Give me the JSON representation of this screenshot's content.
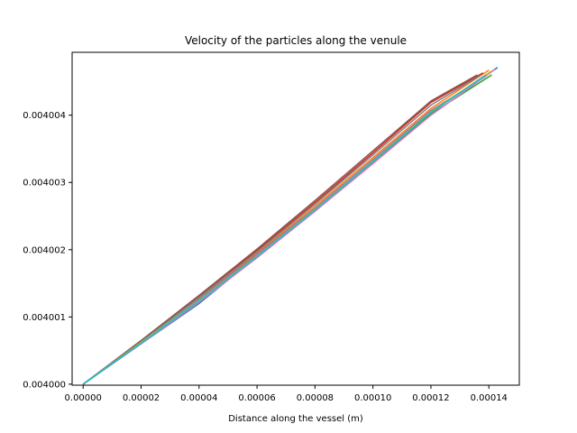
{
  "chart_data": {
    "type": "line",
    "title": "Velocity of the particles along the venule",
    "xlabel": "Distance along the vessel (m)",
    "ylabel": "",
    "xlim": [
      -3.8e-06,
      0.0001505
    ],
    "ylim": [
      0.003999985,
      0.004004935
    ],
    "x_ticks": [
      0,
      2e-05,
      4e-05,
      6e-05,
      8e-05,
      0.0001,
      0.00012,
      0.00014
    ],
    "x_tick_labels": [
      "0.00000",
      "0.00002",
      "0.00004",
      "0.00006",
      "0.00008",
      "0.00010",
      "0.00012",
      "0.00014"
    ],
    "y_ticks": [
      0.004,
      0.004001,
      0.004002,
      0.004003,
      0.004004
    ],
    "y_tick_labels": [
      "0.004000",
      "0.004001",
      "0.004002",
      "0.004003",
      "0.004004"
    ],
    "grid": false,
    "legend": "none",
    "series": [
      {
        "color": "#1f77b4",
        "x": [
          0,
          2e-05,
          4e-05,
          6e-05,
          8e-05,
          0.0001,
          0.00012,
          0.000143
        ],
        "y": [
          0.004,
          0.0040006,
          0.0040012,
          0.0040019,
          0.0040026,
          0.0040033,
          0.004004,
          0.00400471
        ]
      },
      {
        "color": "#ff7f0e",
        "x": [
          0,
          2e-05,
          4e-05,
          6e-05,
          8e-05,
          0.0001,
          0.00012,
          0.00014
        ],
        "y": [
          0.004,
          0.00400063,
          0.00400128,
          0.00400195,
          0.00400265,
          0.00400337,
          0.0040041,
          0.00400467
        ]
      },
      {
        "color": "#2ca02c",
        "x": [
          0,
          2e-05,
          4e-05,
          6e-05,
          8e-05,
          0.0001,
          0.00012,
          0.000141
        ],
        "y": [
          0.004,
          0.00400061,
          0.00400123,
          0.00400189,
          0.00400258,
          0.0040033,
          0.00400402,
          0.0040046
        ]
      },
      {
        "color": "#d62728",
        "x": [
          0,
          2e-05,
          4e-05,
          6e-05,
          8e-05,
          0.0001,
          0.00012,
          0.000138
        ],
        "y": [
          0.004,
          0.00400064,
          0.0040013,
          0.00400199,
          0.0040027,
          0.00400344,
          0.00400419,
          0.00400463
        ]
      },
      {
        "color": "#9467bd",
        "x": [
          0,
          2e-05,
          4e-05,
          6e-05,
          8e-05,
          0.0001,
          0.00012,
          0.000139
        ],
        "y": [
          0.004,
          0.00400062,
          0.00400126,
          0.00400193,
          0.00400262,
          0.00400334,
          0.00400407,
          0.00400458
        ]
      },
      {
        "color": "#8c564b",
        "x": [
          0,
          2e-05,
          4e-05,
          6e-05,
          8e-05,
          0.0001,
          0.00012,
          0.000136
        ],
        "y": [
          0.004,
          0.00400065,
          0.00400132,
          0.00400201,
          0.00400273,
          0.00400347,
          0.00400421,
          0.0040046
        ]
      },
      {
        "color": "#e377c2",
        "x": [
          0,
          2e-05,
          4e-05,
          6e-05,
          8e-05,
          0.0001,
          0.00012,
          0.000142
        ],
        "y": [
          0.004,
          0.0040006,
          0.00400122,
          0.00400188,
          0.00400257,
          0.00400328,
          0.004004,
          0.00400468
        ]
      },
      {
        "color": "#7f7f7f",
        "x": [
          0,
          2e-05,
          4e-05,
          6e-05,
          8e-05,
          0.0001,
          0.00012,
          0.000137
        ],
        "y": [
          0.004,
          0.00400063,
          0.00400129,
          0.00400197,
          0.00400268,
          0.00400341,
          0.00400415,
          0.00400459
        ]
      },
      {
        "color": "#bcbd22",
        "x": [
          0,
          2e-05,
          4e-05,
          6e-05,
          8e-05,
          0.0001,
          0.00012,
          0.000141
        ],
        "y": [
          0.004,
          0.00400062,
          0.00400125,
          0.00400191,
          0.0040026,
          0.00400332,
          0.00400405,
          0.00400466
        ]
      },
      {
        "color": "#17becf",
        "x": [
          0,
          2e-05,
          4e-05,
          6e-05,
          8e-05,
          0.0001,
          0.00012,
          0.000139
        ],
        "y": [
          0.004,
          0.00400061,
          0.00400124,
          0.0040019,
          0.00400259,
          0.00400331,
          0.00400404,
          0.0040046
        ]
      }
    ]
  }
}
